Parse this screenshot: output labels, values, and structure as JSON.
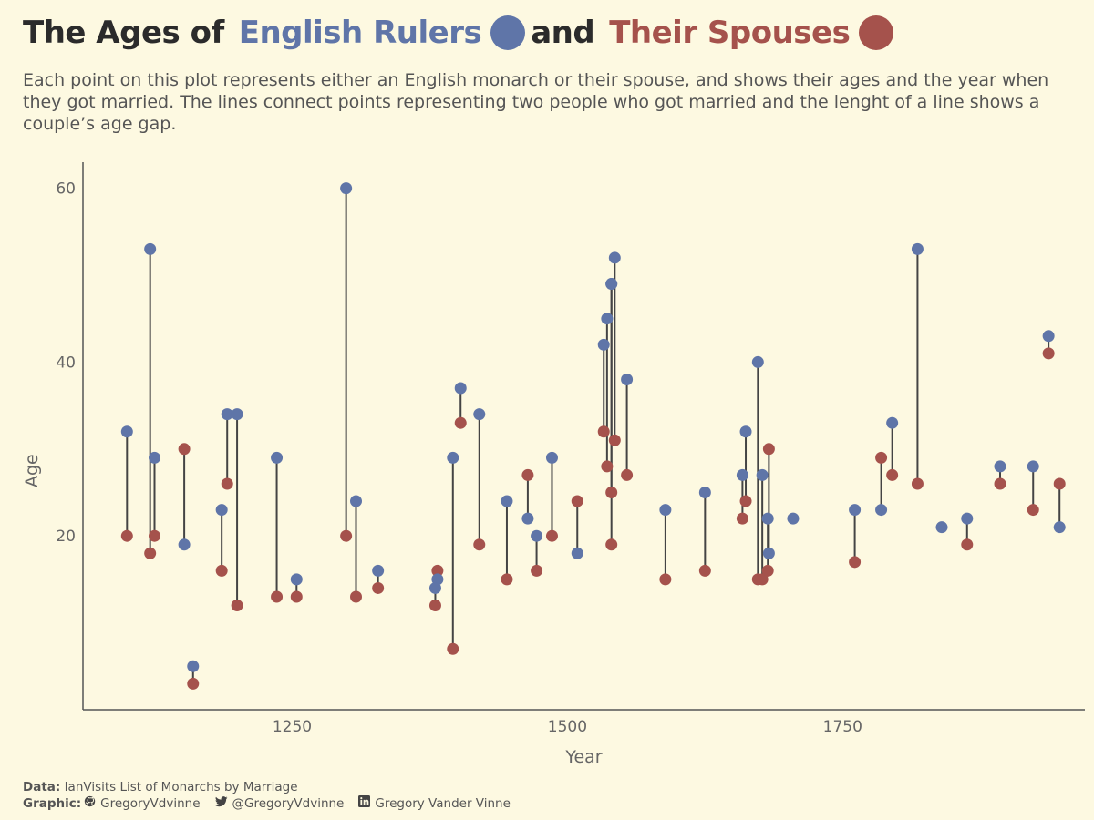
{
  "title": {
    "prefix": "The Ages of",
    "rulers": "English Rulers",
    "and": "and",
    "spouses": "Their Spouses"
  },
  "subtitle": "Each point on this plot represents either an English monarch or their spouse, and shows their ages and the year when they got married. The lines connect points representing two people who got married and the lenght of a line shows a couple’s age gap.",
  "footer": {
    "data_label": "Data:",
    "data_text": "IanVisits List of Monarchs by Marriage",
    "graphic_label": "Graphic:",
    "github": "GregoryVdvinne",
    "twitter": "@GregoryVdvinne",
    "linkedin": "Gregory Vander Vinne"
  },
  "colors": {
    "ruler": "#5f75a8",
    "spouse": "#a5524c",
    "line": "#444444",
    "background": "#fdf9e1"
  },
  "icons": [
    "github-icon",
    "twitter-icon",
    "linkedin-icon"
  ],
  "chart_data": {
    "type": "scatter",
    "xlabel": "Year",
    "ylabel": "Age",
    "xlim": [
      1060,
      1970
    ],
    "ylim": [
      0,
      63
    ],
    "xticks": [
      1250,
      1500,
      1750
    ],
    "yticks": [
      20,
      40,
      60
    ],
    "grid": false,
    "series": [
      {
        "name": "English Rulers",
        "color": "#5f75a8"
      },
      {
        "name": "Their Spouses",
        "color": "#a5524c"
      }
    ],
    "marriages": [
      {
        "year": 1100,
        "ruler_age": 32,
        "spouse_age": 20
      },
      {
        "year": 1121,
        "ruler_age": 53,
        "spouse_age": 18
      },
      {
        "year": 1125,
        "ruler_age": 29,
        "spouse_age": 20
      },
      {
        "year": 1152,
        "ruler_age": 19,
        "spouse_age": 30
      },
      {
        "year": 1160,
        "ruler_age": 5,
        "spouse_age": 3
      },
      {
        "year": 1186,
        "ruler_age": 23,
        "spouse_age": 16
      },
      {
        "year": 1191,
        "ruler_age": 34,
        "spouse_age": 26
      },
      {
        "year": 1200,
        "ruler_age": 34,
        "spouse_age": 12
      },
      {
        "year": 1236,
        "ruler_age": 29,
        "spouse_age": 13
      },
      {
        "year": 1254,
        "ruler_age": 15,
        "spouse_age": 13
      },
      {
        "year": 1299,
        "ruler_age": 60,
        "spouse_age": 20
      },
      {
        "year": 1308,
        "ruler_age": 24,
        "spouse_age": 13
      },
      {
        "year": 1328,
        "ruler_age": 16,
        "spouse_age": 14
      },
      {
        "year": 1382,
        "ruler_age": 15,
        "spouse_age": 16
      },
      {
        "year": 1380,
        "ruler_age": 14,
        "spouse_age": 12
      },
      {
        "year": 1396,
        "ruler_age": 29,
        "spouse_age": 7
      },
      {
        "year": 1403,
        "ruler_age": 37,
        "spouse_age": 33
      },
      {
        "year": 1420,
        "ruler_age": 34,
        "spouse_age": 19
      },
      {
        "year": 1445,
        "ruler_age": 24,
        "spouse_age": 15
      },
      {
        "year": 1464,
        "ruler_age": 22,
        "spouse_age": 27
      },
      {
        "year": 1472,
        "ruler_age": 20,
        "spouse_age": 16
      },
      {
        "year": 1486,
        "ruler_age": 29,
        "spouse_age": 20
      },
      {
        "year": 1509,
        "ruler_age": 18,
        "spouse_age": 24
      },
      {
        "year": 1533,
        "ruler_age": 42,
        "spouse_age": 32
      },
      {
        "year": 1536,
        "ruler_age": 45,
        "spouse_age": 28
      },
      {
        "year": 1540,
        "ruler_age": 49,
        "spouse_age": 25
      },
      {
        "year": 1540,
        "ruler_age": 49,
        "spouse_age": 19
      },
      {
        "year": 1543,
        "ruler_age": 52,
        "spouse_age": 31
      },
      {
        "year": 1554,
        "ruler_age": 38,
        "spouse_age": 27
      },
      {
        "year": 1589,
        "ruler_age": 23,
        "spouse_age": 15
      },
      {
        "year": 1625,
        "ruler_age": 25,
        "spouse_age": 16
      },
      {
        "year": 1662,
        "ruler_age": 32,
        "spouse_age": 24
      },
      {
        "year": 1659,
        "ruler_age": 27,
        "spouse_age": 22
      },
      {
        "year": 1673,
        "ruler_age": 40,
        "spouse_age": 15
      },
      {
        "year": 1677,
        "ruler_age": 27,
        "spouse_age": 15
      },
      {
        "year": 1683,
        "ruler_age": 18,
        "spouse_age": 30
      },
      {
        "year": 1682,
        "ruler_age": 22,
        "spouse_age": 16
      },
      {
        "year": 1705,
        "ruler_age": 22,
        "spouse_age": null
      },
      {
        "year": 1761,
        "ruler_age": 23,
        "spouse_age": 17
      },
      {
        "year": 1785,
        "ruler_age": 23,
        "spouse_age": 29
      },
      {
        "year": 1795,
        "ruler_age": 33,
        "spouse_age": 27
      },
      {
        "year": 1818,
        "ruler_age": 53,
        "spouse_age": 26
      },
      {
        "year": 1840,
        "ruler_age": 21,
        "spouse_age": null
      },
      {
        "year": 1863,
        "ruler_age": 22,
        "spouse_age": 19
      },
      {
        "year": 1893,
        "ruler_age": 28,
        "spouse_age": 26
      },
      {
        "year": 1923,
        "ruler_age": 28,
        "spouse_age": 23
      },
      {
        "year": 1937,
        "ruler_age": 43,
        "spouse_age": 41
      },
      {
        "year": 1947,
        "ruler_age": 21,
        "spouse_age": 26
      }
    ]
  }
}
